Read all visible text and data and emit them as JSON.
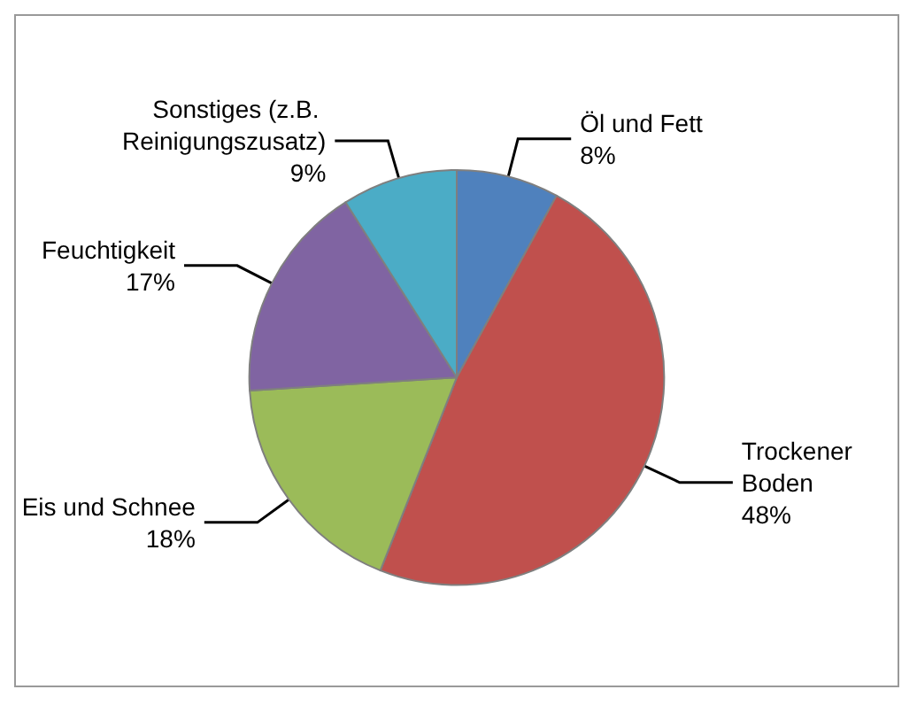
{
  "chart_data": {
    "type": "pie",
    "categories": [
      "Öl und Fett",
      "Trockener Boden",
      "Eis und Schnee",
      "Feuchtigkeit",
      "Sonstiges (z.B. Reinigungszusatz)"
    ],
    "values": [
      8,
      48,
      18,
      17,
      9
    ],
    "colors": [
      "#4f81bd",
      "#c0504d",
      "#9bbb59",
      "#8064a2",
      "#4bacc6"
    ],
    "value_labels": [
      "8%",
      "48%",
      "18%",
      "17%",
      "9%"
    ],
    "legend": false
  }
}
